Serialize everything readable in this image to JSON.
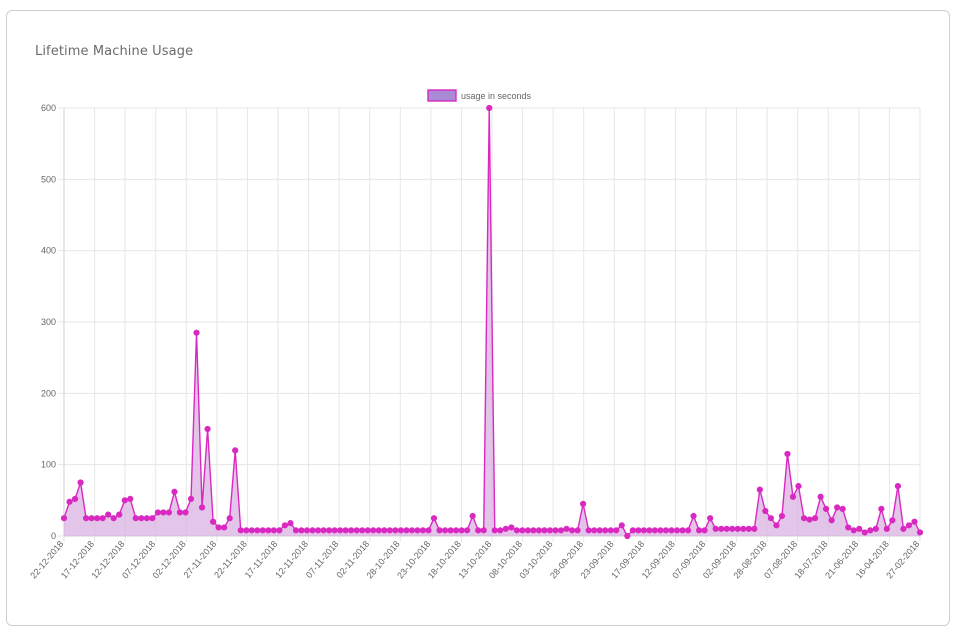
{
  "card": {
    "title": "Lifetime Machine Usage"
  },
  "colors": {
    "line": "#d929c1",
    "fill": "#d9b2e3",
    "legend_fill": "#a88ad6",
    "grid": "#e6e6e6"
  },
  "chart_data": {
    "type": "line",
    "title": "",
    "xlabel": "",
    "ylabel": "",
    "ylim": [
      0,
      600
    ],
    "yticks": [
      0,
      100,
      200,
      300,
      400,
      500,
      600
    ],
    "grid": true,
    "legend_position": "top-center",
    "x_tick_labels": [
      "22-12-2018",
      "17-12-2018",
      "12-12-2018",
      "07-12-2018",
      "02-12-2018",
      "27-11-2018",
      "22-11-2018",
      "17-11-2018",
      "12-11-2018",
      "07-11-2018",
      "02-11-2018",
      "28-10-2018",
      "23-10-2018",
      "18-10-2018",
      "13-10-2018",
      "08-10-2018",
      "03-10-2018",
      "28-09-2018",
      "23-09-2018",
      "17-09-2018",
      "12-09-2018",
      "07-09-2018",
      "02-09-2018",
      "28-08-2018",
      "07-08-2018",
      "18-07-2018",
      "21-06-2018",
      "16-04-2018",
      "27-02-2018"
    ],
    "series": [
      {
        "name": "usage in seconds",
        "values": [
          25,
          48,
          52,
          75,
          25,
          25,
          25,
          25,
          30,
          25,
          30,
          50,
          52,
          25,
          25,
          25,
          25,
          33,
          33,
          33,
          62,
          33,
          33,
          52,
          285,
          40,
          150,
          20,
          12,
          12,
          25,
          120,
          8,
          8,
          8,
          8,
          8,
          8,
          8,
          8,
          15,
          18,
          8,
          8,
          8,
          8,
          8,
          8,
          8,
          8,
          8,
          8,
          8,
          8,
          8,
          8,
          8,
          8,
          8,
          8,
          8,
          8,
          8,
          8,
          8,
          8,
          8,
          25,
          8,
          8,
          8,
          8,
          8,
          8,
          28,
          8,
          8,
          600,
          8,
          8,
          10,
          12,
          8,
          8,
          8,
          8,
          8,
          8,
          8,
          8,
          8,
          10,
          8,
          8,
          45,
          8,
          8,
          8,
          8,
          8,
          8,
          15,
          0,
          8,
          8,
          8,
          8,
          8,
          8,
          8,
          8,
          8,
          8,
          8,
          28,
          8,
          8,
          25,
          10,
          10,
          10,
          10,
          10,
          10,
          10,
          10,
          65,
          35,
          25,
          15,
          28,
          115,
          55,
          70,
          25,
          23,
          25,
          55,
          38,
          22,
          40,
          38,
          12,
          8,
          10,
          5,
          8,
          10,
          38,
          10,
          22,
          70,
          10,
          15,
          20,
          5
        ]
      }
    ]
  }
}
